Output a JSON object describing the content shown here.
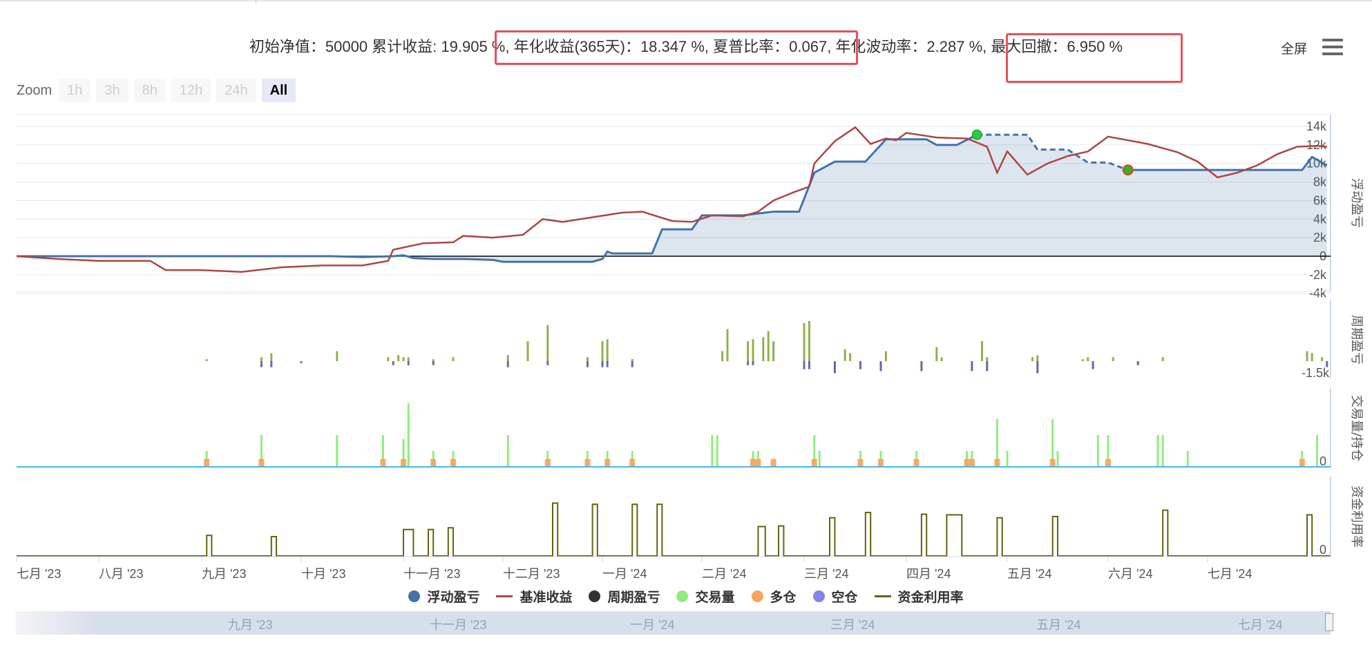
{
  "stats": {
    "text": "初始净值：50000 累计收益: 19.905 %, 年化收益(365天)：18.347 %, 夏普比率：0.067, 年化波动率：2.287 %, 最大回撤：6.950 %"
  },
  "toolbar": {
    "fullscreen_label": "全屏",
    "menu_icon": "hamburger-menu-icon"
  },
  "zoom": {
    "label": "Zoom",
    "buttons": [
      "1h",
      "3h",
      "8h",
      "12h",
      "24h",
      "All"
    ],
    "active": "All"
  },
  "colors": {
    "floating_pnl": "#4572a7",
    "benchmark": "#aa4643",
    "period_pnl": "#333333",
    "volume": "#90ed7d",
    "long": "#f7a35c",
    "short": "#8085e9",
    "capital_util": "#66610f"
  },
  "chart_data": {
    "type": "line",
    "x_ticks": [
      "七月 '23",
      "八月 '23",
      "九月 '23",
      "十月 '23",
      "十一月 '23",
      "十二月 '23",
      "一月 '24",
      "二月 '24",
      "三月 '24",
      "四月 '24",
      "五月 '24",
      "六月 '24",
      "七月 '24"
    ],
    "panes": [
      {
        "title": "浮动盈亏",
        "y_ticks": [
          "14k",
          "12k",
          "10k",
          "8k",
          "6k",
          "4k",
          "2k",
          "0",
          "-2k",
          "-4k"
        ],
        "ylim": [
          -4000,
          14000
        ],
        "series": [
          {
            "name": "浮动盈亏",
            "x": [
              0,
              0.5,
              1.0,
              1.5,
              2.0,
              2.5,
              3.0,
              3.3,
              3.6,
              3.9,
              4.0,
              4.1,
              4.3,
              4.6,
              4.9,
              5.0,
              5.2,
              5.3,
              5.5,
              5.9,
              6.0,
              6.05,
              6.1,
              6.25,
              6.5,
              6.6,
              6.9,
              7.0,
              7.1,
              7.2,
              7.4,
              7.7,
              7.8,
              7.95,
              8.1,
              8.3,
              8.6,
              8.8,
              9.0,
              9.2,
              9.3,
              9.5,
              9.7
            ],
            "y": [
              0,
              0,
              0,
              0,
              0,
              0,
              0,
              0,
              -100,
              0,
              100,
              -200,
              -300,
              -300,
              -400,
              -600,
              -600,
              -600,
              -600,
              -600,
              -300,
              500,
              300,
              300,
              300,
              2900,
              2900,
              4400,
              4400,
              4400,
              4400,
              4800,
              4800,
              4800,
              9000,
              10200,
              10200,
              12600,
              12600,
              12600,
              12000,
              12000,
              13100
            ]
          },
          {
            "name": "浮动盈亏 (回撤)",
            "dashed": true,
            "x": [
              9.7,
              10.2,
              10.3,
              10.6,
              10.8,
              11.0,
              11.2
            ],
            "y": [
              13100,
              13100,
              11500,
              11500,
              10100,
              10100,
              9300
            ]
          },
          {
            "name": "浮动盈亏 (后段)",
            "x": [
              11.2,
              12.0,
              12.5,
              12.95,
              13.05,
              13.2
            ],
            "y": [
              9300,
              9300,
              9300,
              9300,
              10700,
              9800
            ]
          },
          {
            "name": "基准收益",
            "x": [
              0,
              0.5,
              1.0,
              1.5,
              1.65,
              2.0,
              2.4,
              2.8,
              3.2,
              3.6,
              3.85,
              3.9,
              4.2,
              4.5,
              4.6,
              4.9,
              5.2,
              5.4,
              5.6,
              5.9,
              6.2,
              6.4,
              6.7,
              6.9,
              7.1,
              7.4,
              7.55,
              7.7,
              7.9,
              8.05,
              8.1,
              8.3,
              8.5,
              8.65,
              8.8,
              8.9,
              9.0,
              9.3,
              9.6,
              9.8,
              9.9,
              10.0,
              10.2,
              10.4,
              10.6,
              10.8,
              11.0,
              11.2,
              11.4,
              11.7,
              11.9,
              12.1,
              12.3,
              12.5,
              12.7,
              12.9,
              13.1,
              13.2
            ],
            "y": [
              0,
              -300,
              -500,
              -500,
              -1500,
              -1500,
              -1700,
              -1200,
              -1000,
              -1000,
              -500,
              700,
              1400,
              1500,
              2200,
              2000,
              2300,
              4000,
              3700,
              4200,
              4700,
              4800,
              3800,
              3700,
              4400,
              4300,
              4800,
              6000,
              6900,
              7500,
              10000,
              12400,
              13900,
              12100,
              12700,
              12500,
              13300,
              12800,
              12700,
              11800,
              9000,
              11300,
              8800,
              10000,
              10800,
              11300,
              12900,
              12500,
              12100,
              11200,
              10200,
              8500,
              9000,
              9800,
              11000,
              11800,
              11900,
              11800
            ]
          }
        ]
      },
      {
        "title": "周期盈亏",
        "y_ticks": [
          "-1.5k"
        ],
        "series": [
          {
            "name": "周期盈亏",
            "x": [
              2.05,
              2.6,
              2.7,
              3.35,
              3.85,
              3.95,
              4.0,
              4.05,
              4.3,
              4.5,
              5.05,
              5.25,
              5.45,
              5.85,
              6.0,
              6.05,
              6.3,
              7.2,
              7.25,
              7.45,
              7.5,
              7.6,
              7.65,
              7.7,
              8.0,
              8.05,
              8.4,
              8.45,
              8.8,
              9.3,
              9.35,
              9.75,
              9.8,
              10.25,
              10.3,
              10.75,
              10.8,
              11.05,
              11.55,
              13.0,
              13.05,
              13.15
            ],
            "y": [
              100,
              200,
              400,
              500,
              200,
              300,
              200,
              200,
              100,
              200,
              300,
              1000,
              1800,
              200,
              1000,
              1100,
              100,
              500,
              1600,
              1000,
              1100,
              1200,
              1500,
              1000,
              1900,
              2000,
              600,
              400,
              500,
              700,
              200,
              1000,
              200,
              200,
              300,
              100,
              200,
              200,
              200,
              500,
              400,
              200
            ]
          },
          {
            "name": "周期盈亏 (负)",
            "x": [
              2.6,
              2.7,
              3.0,
              3.9,
              4.05,
              4.3,
              5.05,
              5.45,
              5.85,
              6.0,
              6.05,
              6.3,
              7.45,
              7.5,
              8.0,
              8.05,
              8.3,
              8.55,
              8.75,
              9.15,
              9.65,
              9.8,
              10.3,
              10.85,
              11.3,
              13.2
            ],
            "y": [
              -300,
              -300,
              -100,
              -200,
              -200,
              -200,
              -300,
              -200,
              -300,
              -300,
              -300,
              -300,
              -200,
              -200,
              -400,
              -400,
              -600,
              -400,
              -500,
              -500,
              -500,
              -500,
              -600,
              -400,
              -200,
              -300
            ]
          }
        ]
      },
      {
        "title": "交易量/持仓",
        "y_ticks": [
          "0"
        ],
        "series": [
          {
            "name": "交易量",
            "x": [
              2.05,
              2.6,
              3.35,
              3.8,
              4.0,
              4.05,
              4.3,
              4.5,
              5.05,
              5.45,
              5.85,
              6.05,
              6.3,
              7.1,
              7.15,
              7.5,
              7.55,
              8.1,
              8.15,
              8.55,
              8.75,
              9.1,
              9.6,
              9.65,
              9.9,
              10.0,
              10.45,
              10.5,
              10.9,
              11.0,
              11.5,
              11.55,
              11.8,
              12.95,
              13.1
            ],
            "y": [
              40,
              80,
              80,
              80,
              70,
              160,
              40,
              40,
              80,
              40,
              40,
              40,
              40,
              80,
              80,
              40,
              40,
              80,
              40,
              40,
              40,
              40,
              40,
              40,
              120,
              40,
              120,
              40,
              80,
              80,
              80,
              80,
              40,
              40,
              80
            ]
          },
          {
            "name": "多仓",
            "x": [
              2.05,
              2.6,
              3.8,
              4.0,
              4.3,
              4.5,
              5.45,
              5.85,
              6.05,
              6.3,
              7.5,
              7.55,
              7.7,
              8.1,
              8.55,
              8.75,
              9.1,
              9.6,
              9.65,
              9.9,
              10.45,
              11.0,
              12.95
            ],
            "y": [
              20,
              20,
              20,
              20,
              20,
              20,
              20,
              20,
              20,
              20,
              20,
              20,
              20,
              20,
              20,
              20,
              20,
              20,
              20,
              20,
              20,
              20,
              20
            ]
          }
        ]
      },
      {
        "title": "资金利用率",
        "y_ticks": [
          "0"
        ],
        "series": [
          {
            "name": "资金利用率",
            "segments": [
              [
                2.05,
                2.1,
                0.35
              ],
              [
                2.7,
                2.75,
                0.33
              ],
              [
                4.0,
                4.1,
                0.45
              ],
              [
                4.25,
                4.3,
                0.45
              ],
              [
                4.45,
                4.5,
                0.48
              ],
              [
                5.5,
                5.55,
                0.9
              ],
              [
                5.9,
                5.95,
                0.88
              ],
              [
                6.3,
                6.35,
                0.88
              ],
              [
                6.55,
                6.6,
                0.88
              ],
              [
                7.55,
                7.62,
                0.5
              ],
              [
                7.75,
                7.8,
                0.51
              ],
              [
                8.25,
                8.3,
                0.65
              ],
              [
                8.6,
                8.65,
                0.74
              ],
              [
                9.15,
                9.2,
                0.71
              ],
              [
                9.4,
                9.55,
                0.7
              ],
              [
                9.9,
                9.95,
                0.65
              ],
              [
                10.45,
                10.5,
                0.67
              ],
              [
                11.55,
                11.6,
                0.78
              ],
              [
                13.0,
                13.05,
                0.7
              ]
            ]
          }
        ]
      }
    ],
    "legend": [
      {
        "name": "浮动盈亏",
        "color": "#4572a7",
        "shape": "dot"
      },
      {
        "name": "基准收益",
        "color": "#aa4643",
        "shape": "line"
      },
      {
        "name": "周期盈亏",
        "color": "#333333",
        "shape": "dot"
      },
      {
        "name": "交易量",
        "color": "#90ed7d",
        "shape": "dot"
      },
      {
        "name": "多仓",
        "color": "#f7a35c",
        "shape": "dot"
      },
      {
        "name": "空仓",
        "color": "#8085e9",
        "shape": "dot"
      },
      {
        "name": "资金利用率",
        "color": "#66610f",
        "shape": "line"
      }
    ],
    "navigator_ticks": [
      "九月 '23",
      "十一月 '23",
      "一月 '24",
      "三月 '24",
      "五月 '24",
      "七月 '24"
    ],
    "grid": true
  }
}
